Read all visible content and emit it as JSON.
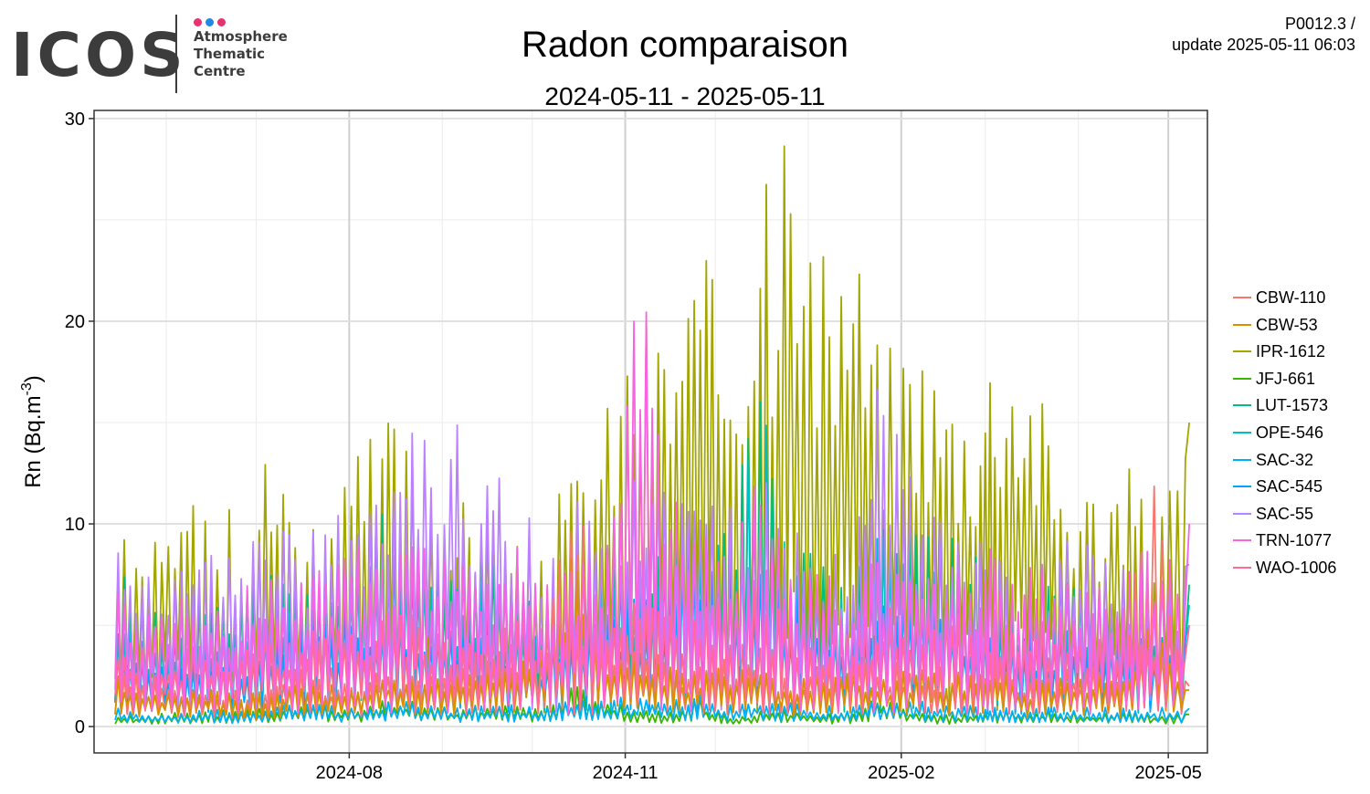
{
  "header": {
    "logo_word": "ICOS",
    "logo_lines": [
      "Atmosphere",
      "Thematic",
      "Centre"
    ],
    "logo_dot_colors": [
      "#e6336e",
      "#1e88e5",
      "#e6336e"
    ],
    "product_code": "P0012.3 /",
    "update_text": "update  2025-05-11 06:03"
  },
  "chart_data": {
    "type": "line",
    "title": "Radon comparaison",
    "subtitle": "2024-05-11 - 2025-05-11",
    "xlabel": "",
    "ylabel": "Rn (Bq.m-3)",
    "xlim": [
      "2024-05-11",
      "2025-05-11"
    ],
    "ylim": [
      -1.3,
      30.4
    ],
    "x_ticks": [
      "2024-08",
      "2024-11",
      "2025-02",
      "2025-05"
    ],
    "y_ticks": [
      0,
      10,
      20,
      30
    ],
    "grid": true,
    "legend_position": "right",
    "x": [
      "2024-05-15",
      "2024-05-25",
      "2024-06-05",
      "2024-06-15",
      "2024-06-25",
      "2024-07-05",
      "2024-07-15",
      "2024-07-25",
      "2024-08-05",
      "2024-08-15",
      "2024-08-25",
      "2024-09-05",
      "2024-09-15",
      "2024-09-25",
      "2024-10-05",
      "2024-10-15",
      "2024-10-25",
      "2024-11-05",
      "2024-11-15",
      "2024-11-25",
      "2024-12-05",
      "2024-12-15",
      "2024-12-25",
      "2025-01-05",
      "2025-01-15",
      "2025-01-25",
      "2025-02-05",
      "2025-02-15",
      "2025-02-25",
      "2025-03-05",
      "2025-03-15",
      "2025-03-25",
      "2025-04-05",
      "2025-04-15",
      "2025-04-25",
      "2025-05-08"
    ],
    "series": [
      {
        "name": "CBW-110",
        "color": "#f8766d",
        "values": [
          3.0,
          2.5,
          2.0,
          2.2,
          1.8,
          2.0,
          3.0,
          2.5,
          2.2,
          3.5,
          2.5,
          3.0,
          3.5,
          4.0,
          4.5,
          12.5,
          4.0,
          5.0,
          3.5,
          3.0,
          3.5,
          4.0,
          2.5,
          3.0,
          3.5,
          3.0,
          3.5,
          3.0,
          2.8,
          3.5,
          2.5,
          3.0,
          3.0,
          2.5,
          13.0,
          2.0
        ]
      },
      {
        "name": "CBW-53",
        "color": "#d89000",
        "values": [
          2.5,
          2.2,
          1.8,
          2.0,
          1.6,
          1.8,
          2.5,
          2.2,
          2.0,
          3.0,
          2.2,
          2.6,
          3.0,
          3.5,
          4.0,
          10.0,
          3.5,
          4.5,
          3.0,
          2.8,
          3.0,
          3.5,
          2.2,
          2.8,
          3.0,
          2.6,
          3.0,
          2.7,
          2.5,
          3.0,
          2.2,
          2.6,
          2.6,
          2.2,
          6.0,
          1.8
        ]
      },
      {
        "name": "IPR-1612",
        "color": "#a3a500",
        "values": [
          10.5,
          8.0,
          12.5,
          10.0,
          11.0,
          14.5,
          12.0,
          10.5,
          14.0,
          16.0,
          13.5,
          11.0,
          12.5,
          9.0,
          10.5,
          13.0,
          16.0,
          21.5,
          20.5,
          24.0,
          22.0,
          26.0,
          29.0,
          23.0,
          26.5,
          19.0,
          21.0,
          18.0,
          17.0,
          21.0,
          19.5,
          14.0,
          12.5,
          13.5,
          12.0,
          15.0
        ]
      },
      {
        "name": "JFJ-661",
        "color": "#39b600",
        "values": [
          0.5,
          0.6,
          0.7,
          0.8,
          0.9,
          1.0,
          1.2,
          1.0,
          1.1,
          1.5,
          1.3,
          1.0,
          1.2,
          1.1,
          1.0,
          2.0,
          1.5,
          1.0,
          0.8,
          1.5,
          0.5,
          0.8,
          1.0,
          0.6,
          0.8,
          1.5,
          0.9,
          0.6,
          0.7,
          0.8,
          0.9,
          0.8,
          0.7,
          0.8,
          0.7,
          0.6
        ]
      },
      {
        "name": "LUT-1573",
        "color": "#00bf7d",
        "values": [
          8.0,
          6.0,
          5.0,
          7.0,
          6.5,
          8.0,
          7.5,
          9.0,
          10.0,
          11.0,
          9.0,
          8.0,
          10.0,
          7.0,
          6.0,
          8.0,
          9.0,
          8.5,
          10.0,
          12.0,
          11.0,
          17.0,
          10.0,
          8.0,
          7.0,
          12.0,
          11.0,
          10.0,
          9.0,
          7.0,
          6.0,
          8.0,
          7.0,
          6.0,
          6.5,
          7.0
        ]
      },
      {
        "name": "OPE-546",
        "color": "#00bfc4",
        "values": [
          6.0,
          5.0,
          4.0,
          5.5,
          5.0,
          6.0,
          6.5,
          7.0,
          8.0,
          9.0,
          7.5,
          6.0,
          8.0,
          6.0,
          5.0,
          6.5,
          7.0,
          7.5,
          8.0,
          11.0,
          10.0,
          17.5,
          9.0,
          7.0,
          6.0,
          10.0,
          9.0,
          8.0,
          7.0,
          6.0,
          5.0,
          6.0,
          5.5,
          5.0,
          5.5,
          6.0
        ]
      },
      {
        "name": "SAC-32",
        "color": "#00b0f6",
        "values": [
          1.0,
          0.8,
          0.7,
          0.9,
          0.8,
          1.0,
          1.2,
          1.1,
          1.0,
          1.3,
          1.2,
          1.0,
          1.2,
          1.1,
          1.0,
          1.3,
          1.4,
          1.5,
          1.3,
          1.6,
          1.2,
          1.5,
          1.3,
          1.1,
          1.0,
          1.4,
          1.3,
          1.2,
          1.1,
          1.0,
          0.9,
          1.0,
          1.0,
          0.9,
          1.0,
          0.9
        ]
      },
      {
        "name": "SAC-545",
        "color": "#00a5ff",
        "values": [
          4.0,
          3.5,
          3.0,
          4.0,
          3.5,
          4.5,
          5.0,
          5.5,
          6.0,
          6.5,
          5.0,
          4.5,
          5.5,
          4.0,
          3.5,
          5.0,
          6.0,
          6.5,
          7.0,
          9.0,
          8.0,
          10.0,
          7.0,
          6.0,
          5.0,
          8.0,
          7.0,
          6.5,
          6.0,
          5.0,
          4.5,
          5.0,
          4.5,
          4.0,
          4.5,
          5.0
        ]
      },
      {
        "name": "SAC-55",
        "color": "#bb81ff",
        "values": [
          11.0,
          9.0,
          8.0,
          9.0,
          8.5,
          10.0,
          9.5,
          10.5,
          11.0,
          12.0,
          16.5,
          15.5,
          13.0,
          12.5,
          10.0,
          11.0,
          12.0,
          13.0,
          14.0,
          12.0,
          11.0,
          13.0,
          10.0,
          9.0,
          8.0,
          18.0,
          12.0,
          11.0,
          10.0,
          9.0,
          8.0,
          10.5,
          9.0,
          8.0,
          9.0,
          8.0
        ]
      },
      {
        "name": "TRN-1077",
        "color": "#f763e0",
        "values": [
          7.0,
          6.0,
          6.5,
          6.0,
          7.0,
          8.0,
          7.0,
          8.0,
          9.0,
          9.5,
          9.0,
          8.5,
          8.0,
          9.5,
          8.0,
          8.5,
          9.0,
          23.5,
          14.0,
          10.0,
          11.0,
          12.0,
          9.0,
          8.0,
          7.0,
          10.0,
          9.0,
          8.0,
          8.5,
          9.0,
          8.0,
          9.0,
          8.5,
          8.0,
          9.0,
          10.0
        ]
      },
      {
        "name": "WAO-1006",
        "color": "#ff6c91",
        "values": [
          5.0,
          4.5,
          4.0,
          4.5,
          4.0,
          5.0,
          4.5,
          5.0,
          5.5,
          6.0,
          5.5,
          5.0,
          5.5,
          6.0,
          5.0,
          6.0,
          6.5,
          7.0,
          6.5,
          6.0,
          6.5,
          7.0,
          5.5,
          5.0,
          5.5,
          6.0,
          6.5,
          6.0,
          5.5,
          6.0,
          5.0,
          5.5,
          5.0,
          5.0,
          5.0,
          5.0
        ]
      }
    ]
  }
}
